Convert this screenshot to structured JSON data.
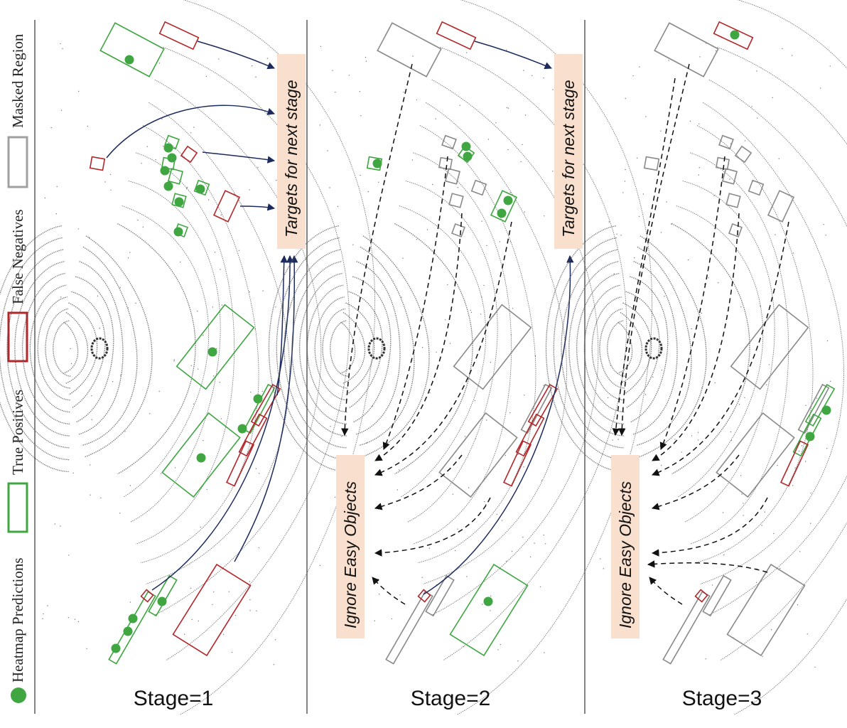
{
  "legend": {
    "masked_region": "Masked Region",
    "false_negatives": "False Negatives",
    "true_positives": "True Positives",
    "heatmap_predictions": "Heatmap Predictions"
  },
  "panels": [
    {
      "stage_label": "Stage=1",
      "side_label": "Targets for next stage"
    },
    {
      "stage_label": "Stage=2",
      "side_label": "Targets for next stage",
      "bottom_label": "Ignore Easy Objects"
    },
    {
      "stage_label": "Stage=3",
      "bottom_label": "Ignore Easy Objects"
    }
  ],
  "colors": {
    "green": "#3fa642",
    "red": "#b3262a",
    "gray": "#8a8a8a",
    "navy": "#1c2b5e",
    "label_bg": "#f9dfcd",
    "lidar": "#555555"
  }
}
